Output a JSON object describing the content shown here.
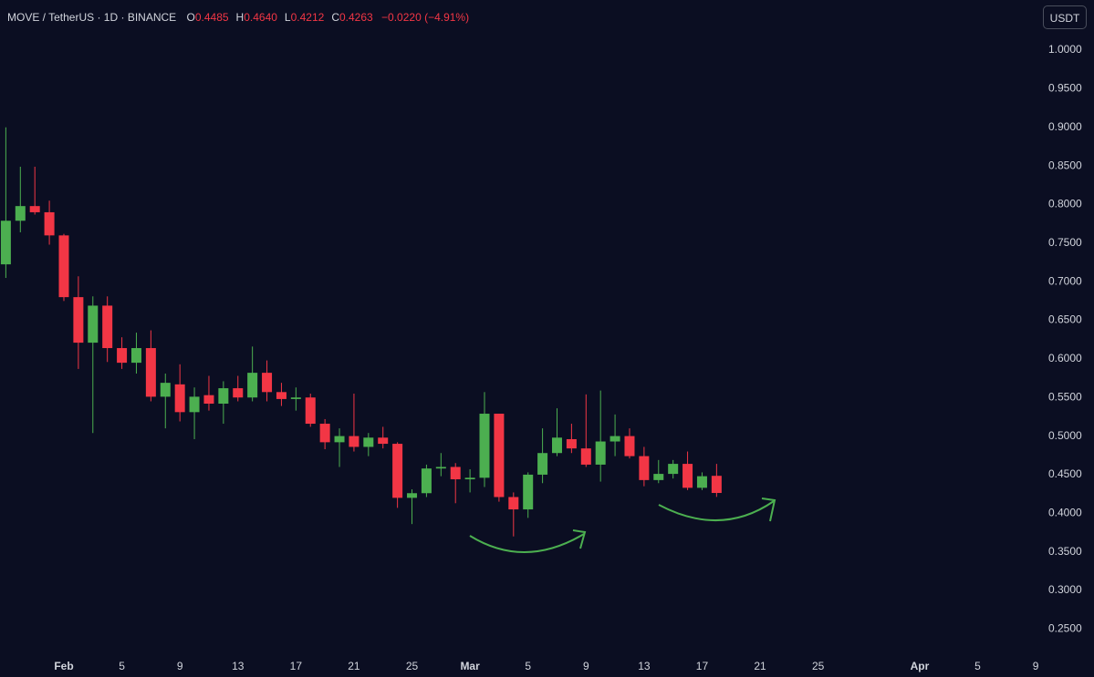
{
  "header": {
    "symbol": "MOVE / TetherUS · 1D · BINANCE",
    "ohlc": [
      {
        "label": "O",
        "value": "0.4485"
      },
      {
        "label": "H",
        "value": "0.4640"
      },
      {
        "label": "L",
        "value": "0.4212"
      },
      {
        "label": "C",
        "value": "0.4263"
      }
    ],
    "change": "−0.0220 (−4.91%)"
  },
  "currency_button": "USDT",
  "chart_data": {
    "type": "candlestick",
    "x": [
      "01-28",
      "01-29",
      "01-30",
      "01-31",
      "02-01",
      "02-02",
      "02-03",
      "02-04",
      "02-05",
      "02-06",
      "02-07",
      "02-08",
      "02-09",
      "02-10",
      "02-11",
      "02-12",
      "02-13",
      "02-14",
      "02-15",
      "02-16",
      "02-17",
      "02-18",
      "02-19",
      "02-20",
      "02-21",
      "02-22",
      "02-23",
      "02-24",
      "02-25",
      "02-26",
      "02-27",
      "02-28",
      "03-01",
      "03-02",
      "03-03",
      "03-04",
      "03-05",
      "03-06",
      "03-07",
      "03-08",
      "03-09",
      "03-10",
      "03-11",
      "03-12",
      "03-13",
      "03-14",
      "03-15",
      "03-16",
      "03-17",
      "03-18"
    ],
    "open": [
      0.7225,
      0.779,
      0.798,
      0.79,
      0.76,
      0.68,
      0.621,
      0.669,
      0.614,
      0.595,
      0.614,
      0.551,
      0.567,
      0.531,
      0.553,
      0.542,
      0.562,
      0.55,
      0.582,
      0.557,
      0.548,
      0.55,
      0.516,
      0.492,
      0.5,
      0.486,
      0.498,
      0.49,
      0.42,
      0.426,
      0.458,
      0.46,
      0.444,
      0.446,
      0.529,
      0.421,
      0.405,
      0.45,
      0.478,
      0.496,
      0.484,
      0.463,
      0.493,
      0.5,
      0.474,
      0.443,
      0.451,
      0.464,
      0.433,
      0.4485
    ],
    "high": [
      0.9,
      0.849,
      0.849,
      0.805,
      0.762,
      0.707,
      0.681,
      0.681,
      0.628,
      0.634,
      0.637,
      0.581,
      0.593,
      0.563,
      0.578,
      0.571,
      0.578,
      0.616,
      0.598,
      0.569,
      0.563,
      0.555,
      0.522,
      0.51,
      0.555,
      0.504,
      0.512,
      0.492,
      0.431,
      0.463,
      0.478,
      0.465,
      0.457,
      0.557,
      0.529,
      0.427,
      0.453,
      0.51,
      0.536,
      0.516,
      0.554,
      0.559,
      0.528,
      0.51,
      0.486,
      0.469,
      0.469,
      0.48,
      0.453,
      0.464
    ],
    "low": [
      0.705,
      0.764,
      0.787,
      0.748,
      0.675,
      0.587,
      0.504,
      0.596,
      0.587,
      0.581,
      0.545,
      0.51,
      0.519,
      0.496,
      0.533,
      0.516,
      0.545,
      0.545,
      0.545,
      0.539,
      0.533,
      0.512,
      0.483,
      0.46,
      0.48,
      0.474,
      0.484,
      0.407,
      0.386,
      0.421,
      0.448,
      0.413,
      0.427,
      0.434,
      0.415,
      0.37,
      0.394,
      0.439,
      0.474,
      0.478,
      0.46,
      0.441,
      0.474,
      0.471,
      0.435,
      0.439,
      0.445,
      0.43,
      0.43,
      0.4212
    ],
    "close": [
      0.779,
      0.798,
      0.79,
      0.76,
      0.68,
      0.621,
      0.669,
      0.614,
      0.595,
      0.614,
      0.551,
      0.569,
      0.531,
      0.551,
      0.542,
      0.562,
      0.55,
      0.582,
      0.557,
      0.548,
      0.55,
      0.516,
      0.492,
      0.5,
      0.486,
      0.498,
      0.49,
      0.42,
      0.426,
      0.458,
      0.46,
      0.444,
      0.446,
      0.529,
      0.421,
      0.405,
      0.45,
      0.478,
      0.498,
      0.484,
      0.463,
      0.493,
      0.5,
      0.474,
      0.443,
      0.451,
      0.464,
      0.433,
      0.448,
      0.4263
    ],
    "up_color": "#4caf50",
    "down_color": "#f23645",
    "xlim": [
      "01-27",
      "04-10"
    ],
    "xticks": [
      {
        "value": "02-01",
        "label": "Feb"
      },
      {
        "value": "02-05",
        "label": "5"
      },
      {
        "value": "02-09",
        "label": "9"
      },
      {
        "value": "02-13",
        "label": "13"
      },
      {
        "value": "02-17",
        "label": "17"
      },
      {
        "value": "02-21",
        "label": "21"
      },
      {
        "value": "02-25",
        "label": "25"
      },
      {
        "value": "03-01",
        "label": "Mar"
      },
      {
        "value": "03-05",
        "label": "5"
      },
      {
        "value": "03-09",
        "label": "9"
      },
      {
        "value": "03-13",
        "label": "13"
      },
      {
        "value": "03-17",
        "label": "17"
      },
      {
        "value": "03-21",
        "label": "21"
      },
      {
        "value": "03-25",
        "label": "25"
      },
      {
        "value": "04-01",
        "label": "Apr"
      },
      {
        "value": "04-05",
        "label": "5"
      },
      {
        "value": "04-09",
        "label": "9"
      }
    ],
    "ylim": [
      0.215,
      1.065
    ],
    "yticks": [
      {
        "value": 0.25,
        "label": "0.2500"
      },
      {
        "value": 0.3,
        "label": "0.3000"
      },
      {
        "value": 0.35,
        "label": "0.3500"
      },
      {
        "value": 0.4,
        "label": "0.4000"
      },
      {
        "value": 0.45,
        "label": "0.4500"
      },
      {
        "value": 0.5,
        "label": "0.5000"
      },
      {
        "value": 0.55,
        "label": "0.5500"
      },
      {
        "value": 0.6,
        "label": "0.6000"
      },
      {
        "value": 0.65,
        "label": "0.6500"
      },
      {
        "value": 0.7,
        "label": "0.7000"
      },
      {
        "value": 0.75,
        "label": "0.7500"
      },
      {
        "value": 0.8,
        "label": "0.8000"
      },
      {
        "value": 0.85,
        "label": "0.8500"
      },
      {
        "value": 0.9,
        "label": "0.9000"
      },
      {
        "value": 0.95,
        "label": "0.9500"
      },
      {
        "value": 1.0,
        "label": "1.0000"
      }
    ],
    "grid": false
  }
}
